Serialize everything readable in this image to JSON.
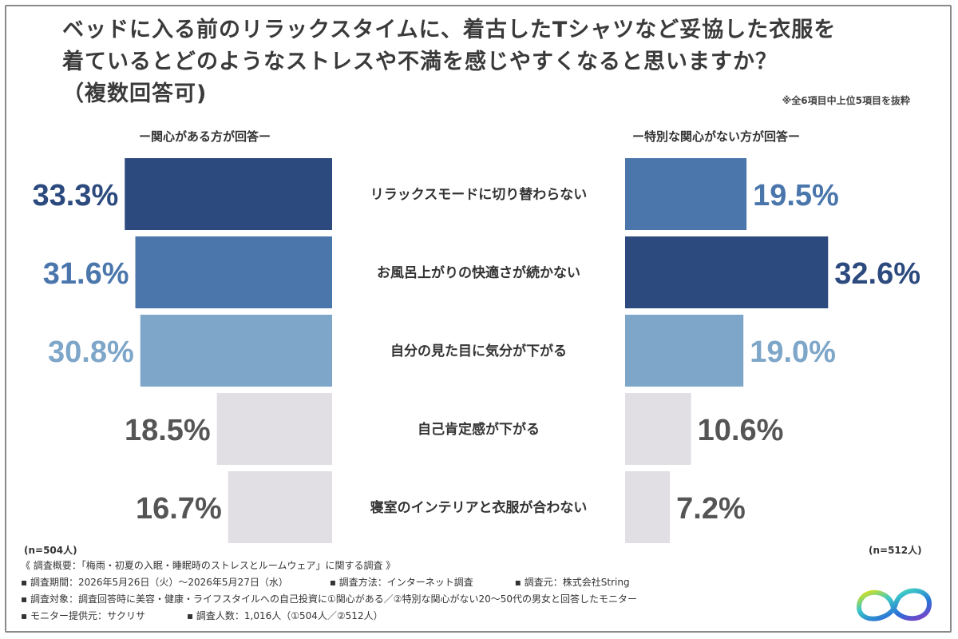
{
  "title": {
    "line1": "ベッドに入る前のリラックスタイムに、着古したTシャツなど妥協した衣服を",
    "line2": "着ているとどのようなストレスや不満を感じやすくなると思いますか？",
    "line3": "（複数回答可)"
  },
  "note": "※全6項目中上位5項目を抜粋",
  "left_header": "ー関心がある方が回答ー",
  "right_header": "ー特別な関心がない方が回答ー",
  "left_n": "(n=504人)",
  "right_n": "(n=512人)",
  "colors": {
    "rank1": "#2c4a7e",
    "rank2": "#4a76ac",
    "rank3": "#7da6c9",
    "other": "#e1dfe3"
  },
  "chart_data": {
    "type": "bar",
    "categories": [
      "リラックスモードに切り替わらない",
      "お風呂上がりの快適さが続かない",
      "自分の見た目に気分が下がる",
      "自己肯定感が下がる",
      "寝室のインテリアと衣服が合わない"
    ],
    "series": [
      {
        "name": "ー関心がある方が回答ー",
        "values": [
          33.3,
          31.6,
          30.8,
          18.5,
          16.7
        ],
        "labels": [
          "33.3%",
          "31.6%",
          "30.8%",
          "18.5%",
          "16.7%"
        ]
      },
      {
        "name": "ー特別な関心がない方が回答ー",
        "values": [
          19.5,
          32.6,
          19.0,
          10.6,
          7.2
        ],
        "labels": [
          "19.5%",
          "32.6%",
          "19.0%",
          "10.6%",
          "7.2%"
        ]
      }
    ]
  },
  "footer": {
    "overview": "《 調査概要：「梅雨・初夏の入眠・睡眠時のストレスとルームウェア」に関する調査 》",
    "period": "▪ 調査期間：2026年5月26日（火）〜2026年5月27日（水）",
    "method": "▪ 調査方法：インターネット調査",
    "source": "▪ 調査元：株式会社String",
    "target": "▪ 調査対象：調査回答時に美容・健康・ライフスタイルへの自己投資に①関心がある／②特別な関心がない20〜50代の男女と回答したモニター",
    "provider": "▪ モニター提供元：サクリサ",
    "count": "▪ 調査人数：1,016人（①504人／②512人）"
  }
}
